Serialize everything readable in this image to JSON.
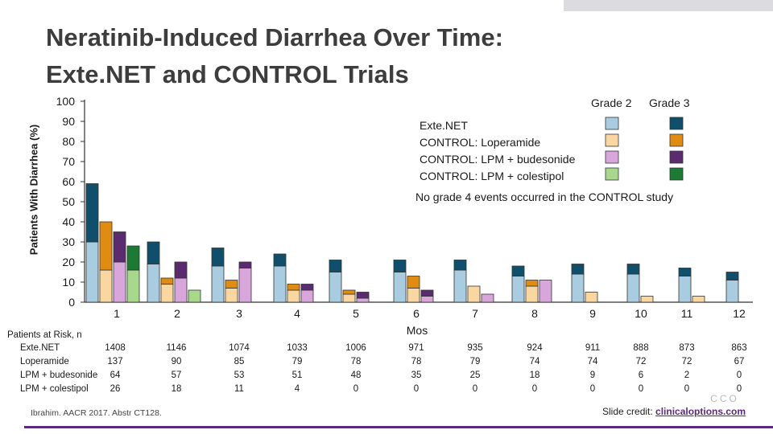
{
  "title_line1": "Neratinib-Induced Diarrhea Over Time:",
  "title_line2": "Exte.NET and CONTROL Trials",
  "chart_data": {
    "type": "bar",
    "stacked": true,
    "ylabel": "Patients With Diarrhea (%)",
    "xlabel": "Mos",
    "ylim": [
      0,
      100
    ],
    "yticks": [
      "0",
      "10",
      "20",
      "30",
      "40",
      "50",
      "60",
      "70",
      "80",
      "90",
      "100"
    ],
    "categories": [
      "1",
      "2",
      "3",
      "4",
      "5",
      "6",
      "7",
      "8",
      "9",
      "10",
      "11",
      "12"
    ],
    "legend": {
      "header_grade2": "Grade 2",
      "header_grade3": "Grade 3",
      "note": "No grade 4 events occurred in the CONTROL study"
    },
    "series": [
      {
        "name": "Exte.NET",
        "color2": "#a9cce0",
        "color3": "#0f4f6b",
        "grade2": [
          30,
          19,
          18,
          18,
          15,
          15,
          16,
          13,
          14,
          14,
          13,
          11
        ],
        "grade3": [
          29,
          11,
          9,
          6,
          6,
          6,
          5,
          5,
          5,
          5,
          4,
          4
        ]
      },
      {
        "name": "CONTROL: Loperamide",
        "color2": "#fad7a0",
        "color3": "#e08b12",
        "grade2": [
          16,
          9,
          7,
          6,
          4,
          7,
          8,
          8,
          5,
          3,
          3,
          0
        ],
        "grade3": [
          24,
          3,
          4,
          3,
          2,
          6,
          0,
          3,
          0,
          0,
          0,
          0
        ]
      },
      {
        "name": "CONTROL: LPM + budesonide",
        "color2": "#d9a6dc",
        "color3": "#5a2b6e",
        "grade2": [
          20,
          12,
          17,
          6,
          2,
          3,
          4,
          11,
          0,
          0,
          0,
          0
        ],
        "grade3": [
          15,
          8,
          3,
          3,
          3,
          3,
          0,
          0,
          0,
          0,
          0,
          0
        ]
      },
      {
        "name": "CONTROL: LPM + colestipol",
        "color2": "#a8d88c",
        "color3": "#1c7a35",
        "grade2": [
          16,
          6,
          0,
          0,
          0,
          0,
          0,
          0,
          0,
          0,
          0,
          0
        ],
        "grade3": [
          12,
          0,
          0,
          0,
          0,
          0,
          0,
          0,
          0,
          0,
          0,
          0
        ]
      }
    ]
  },
  "risk": {
    "header": "Patients at Risk, n",
    "rows": [
      {
        "label": "Exte.NET",
        "values": [
          "1408",
          "1146",
          "1074",
          "1033",
          "1006",
          "971",
          "935",
          "924",
          "911",
          "888",
          "873",
          "863"
        ]
      },
      {
        "label": "Loperamide",
        "values": [
          "137",
          "90",
          "85",
          "79",
          "78",
          "78",
          "79",
          "74",
          "74",
          "72",
          "72",
          "67"
        ]
      },
      {
        "label": "LPM + budesonide",
        "values": [
          "64",
          "57",
          "53",
          "51",
          "48",
          "35",
          "25",
          "18",
          "9",
          "6",
          "2",
          "0"
        ]
      },
      {
        "label": "LPM + colestipol",
        "values": [
          "26",
          "18",
          "11",
          "4",
          "0",
          "0",
          "0",
          "0",
          "0",
          "0",
          "0",
          "0"
        ]
      }
    ]
  },
  "footnote": "Ibrahim. AACR 2017. Abstr CT128.",
  "credit_prefix": "Slide credit: ",
  "credit_link": "clinicaloptions.com",
  "logo_text": "CCO"
}
